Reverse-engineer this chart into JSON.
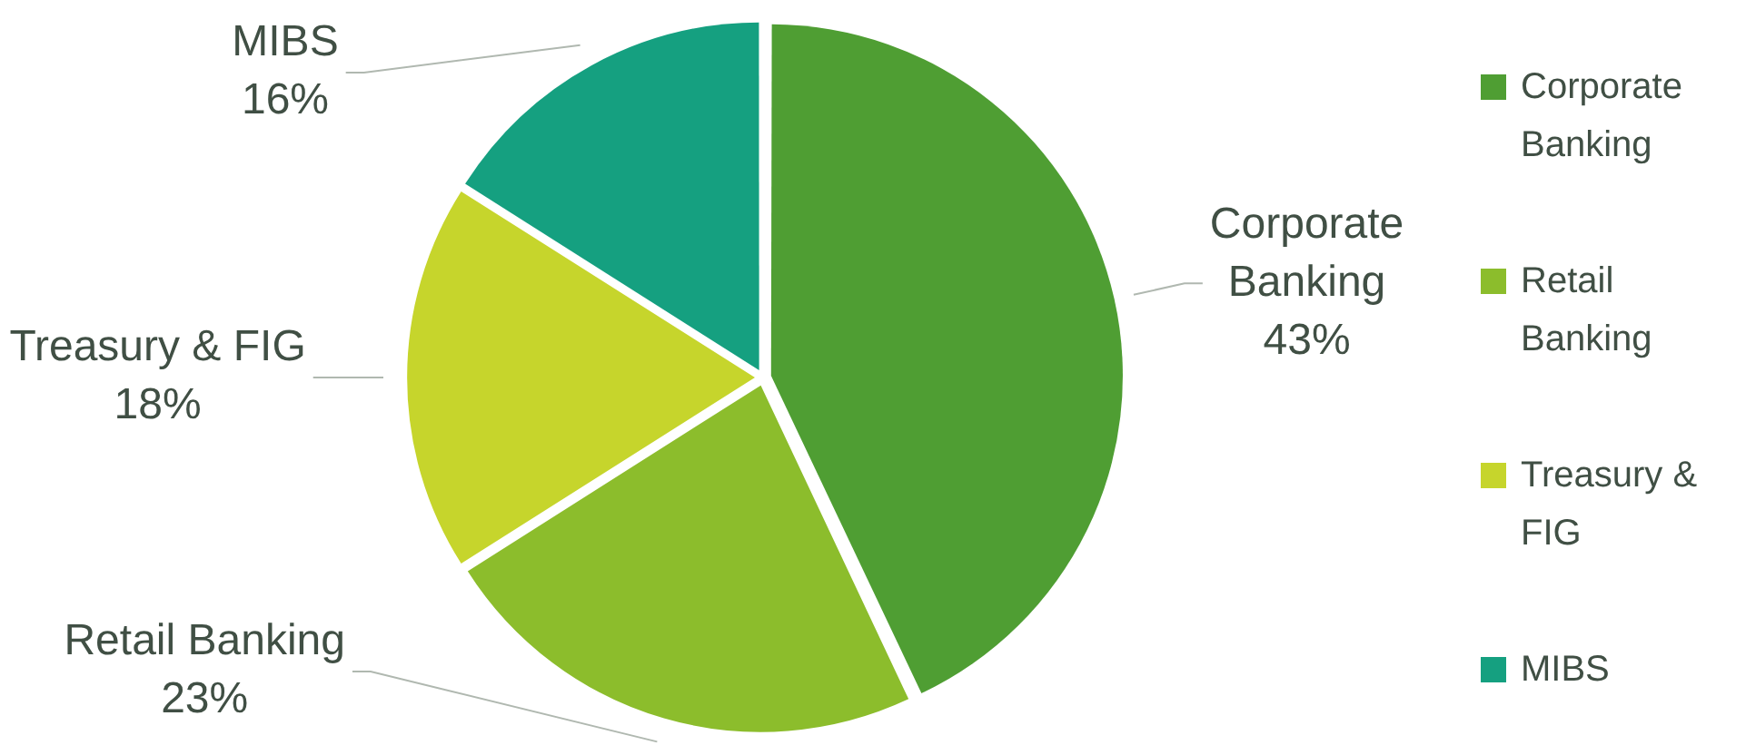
{
  "chart_data": {
    "type": "pie",
    "categories": [
      "Corporate Banking",
      "Retail Banking",
      "Treasury & FIG",
      "MIBS"
    ],
    "values": [
      43,
      23,
      18,
      16
    ],
    "colors": [
      "#4f9e33",
      "#8cbd2c",
      "#c6d52c",
      "#15a080"
    ],
    "value_labels": [
      "43%",
      "23%",
      "18%",
      "16%"
    ],
    "legend": "right"
  }
}
